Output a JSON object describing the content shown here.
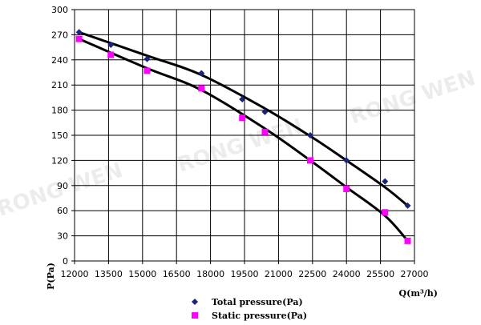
{
  "chart_data": {
    "type": "scatter",
    "title": "",
    "xlabel": "Q(m³/h)",
    "ylabel": "P(Pa)",
    "xlim": [
      12000,
      27000
    ],
    "ylim": [
      0,
      300
    ],
    "grid": true,
    "x_ticks": [
      "12000",
      "13500",
      "15000",
      "16500",
      "18000",
      "19500",
      "21000",
      "22500",
      "24000",
      "25500",
      "27000"
    ],
    "y_ticks": [
      "0",
      "30",
      "60",
      "90",
      "120",
      "150",
      "180",
      "210",
      "240",
      "270",
      "300"
    ],
    "series": [
      {
        "name": "Total pressure(Pa)",
        "color": "#1a237e",
        "marker": "diamond",
        "x": [
          12200,
          13600,
          15200,
          17600,
          19400,
          20400,
          22400,
          24000,
          25700,
          26700
        ],
        "y": [
          273,
          258,
          241,
          224,
          193,
          178,
          150,
          120,
          95,
          66
        ]
      },
      {
        "name": "Static pressure(Pa)",
        "color": "#ff00ff",
        "marker": "square",
        "x": [
          12200,
          13600,
          15200,
          17600,
          19400,
          20400,
          22400,
          24000,
          25700,
          26700
        ],
        "y": [
          265,
          246,
          227,
          206,
          171,
          154,
          120,
          86,
          58,
          24
        ]
      }
    ],
    "trend_lines": [
      {
        "x": [
          12200,
          15200,
          17600,
          20400,
          22400,
          24000,
          25700,
          26700
        ],
        "y": [
          273,
          245,
          222,
          182,
          149,
          120,
          88,
          66
        ]
      },
      {
        "x": [
          12200,
          15200,
          17600,
          20400,
          22400,
          24000,
          25700,
          26700
        ],
        "y": [
          265,
          230,
          204,
          158,
          120,
          88,
          54,
          24
        ]
      }
    ],
    "legend_position": "bottom",
    "watermark": "RONG WEN"
  }
}
